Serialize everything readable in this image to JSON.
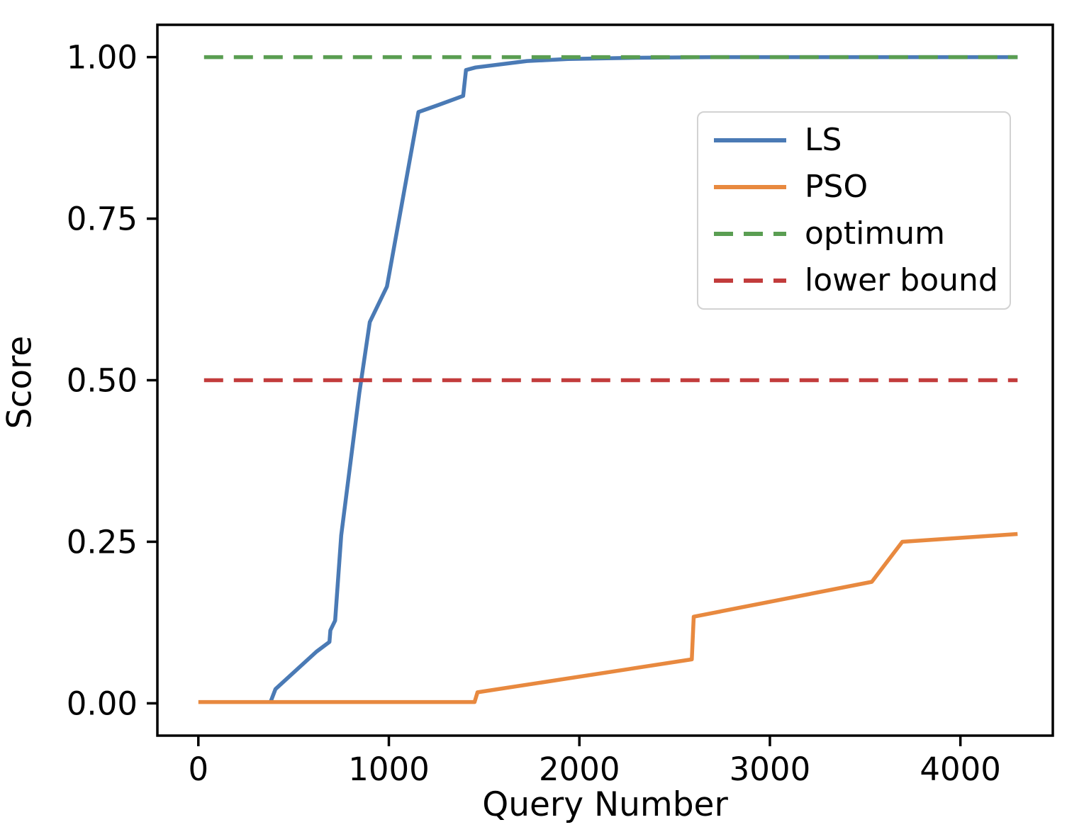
{
  "chart_data": {
    "type": "line",
    "title": "",
    "xlabel": "Query Number",
    "ylabel": "Score",
    "xlim": [
      -215,
      4485
    ],
    "ylim": [
      -0.05,
      1.05
    ],
    "x_ticks": [
      0,
      1000,
      2000,
      3000,
      4000
    ],
    "x_tick_labels": [
      "0",
      "1000",
      "2000",
      "3000",
      "4000"
    ],
    "y_ticks": [
      0.0,
      0.25,
      0.5,
      0.75,
      1.0
    ],
    "y_tick_labels": [
      "0.00",
      "0.25",
      "0.50",
      "0.75",
      "1.00"
    ],
    "grid": false,
    "legend_position": "upper right",
    "series": [
      {
        "name": "LS",
        "color": "#4a7ab5",
        "style": "solid",
        "points": [
          [
            380,
            0.003
          ],
          [
            405,
            0.022
          ],
          [
            620,
            0.08
          ],
          [
            688,
            0.095
          ],
          [
            693,
            0.113
          ],
          [
            718,
            0.128
          ],
          [
            750,
            0.26
          ],
          [
            845,
            0.48
          ],
          [
            900,
            0.59
          ],
          [
            990,
            0.645
          ],
          [
            1155,
            0.915
          ],
          [
            1260,
            0.926
          ],
          [
            1390,
            0.94
          ],
          [
            1405,
            0.98
          ],
          [
            1455,
            0.984
          ],
          [
            1725,
            0.994
          ],
          [
            1940,
            0.997
          ],
          [
            2300,
            0.999
          ],
          [
            2700,
            1.0
          ],
          [
            4300,
            1.0
          ]
        ]
      },
      {
        "name": "PSO",
        "color": "#e8893f",
        "style": "solid",
        "points": [
          [
            0,
            0.002
          ],
          [
            1450,
            0.002
          ],
          [
            1465,
            0.017
          ],
          [
            2590,
            0.068
          ],
          [
            2600,
            0.134
          ],
          [
            3535,
            0.188
          ],
          [
            3695,
            0.25
          ],
          [
            4300,
            0.262
          ]
        ]
      },
      {
        "name": "optimum",
        "color": "#5a9e52",
        "style": "dashed",
        "points": [
          [
            30,
            1.0
          ],
          [
            4300,
            1.0
          ]
        ]
      },
      {
        "name": "lower bound",
        "color": "#c23c3c",
        "style": "dashed",
        "points": [
          [
            30,
            0.5
          ],
          [
            4300,
            0.5
          ]
        ]
      }
    ],
    "legend_entries": [
      "LS",
      "PSO",
      "optimum",
      "lower bound"
    ]
  },
  "axes": {
    "x_label": "Query Number",
    "y_label": "Score"
  }
}
